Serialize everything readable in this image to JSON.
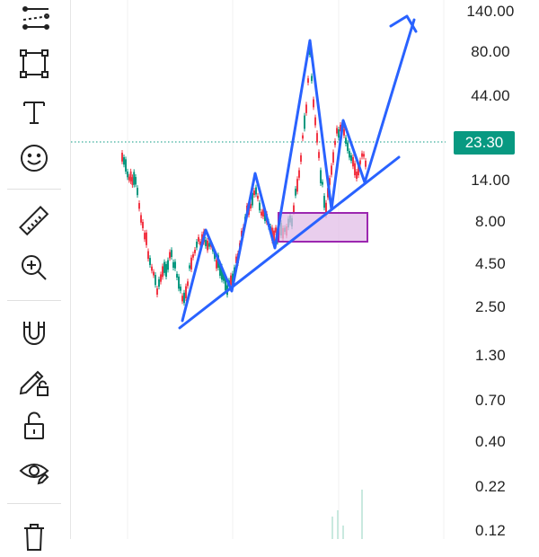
{
  "toolbar": {
    "tools": [
      {
        "name": "trend-line-tools-icon"
      },
      {
        "name": "rectangle-tool-icon"
      },
      {
        "name": "text-tool-icon"
      },
      {
        "name": "emoji-icon"
      },
      {
        "name": "ruler-icon"
      },
      {
        "name": "zoom-in-icon"
      },
      {
        "name": "magnet-icon"
      },
      {
        "name": "lock-drawing-icon"
      },
      {
        "name": "unlock-icon"
      },
      {
        "name": "eye-icon"
      },
      {
        "name": "trash-icon"
      }
    ]
  },
  "price_axis": {
    "ticks": [
      "140.00",
      "80.00",
      "44.00",
      "23.30",
      "14.00",
      "8.00",
      "4.50",
      "2.50",
      "1.30",
      "0.70",
      "0.40",
      "0.22",
      "0.12"
    ],
    "current_price": "23.30",
    "scale": "log"
  },
  "colors": {
    "up_candle": "#089981",
    "down_candle": "#f23645",
    "drawing_line": "#2962ff",
    "price_badge": "#089981",
    "highlight_box_fill": "#e1bee7",
    "highlight_box_border": "#9c27b0"
  }
}
